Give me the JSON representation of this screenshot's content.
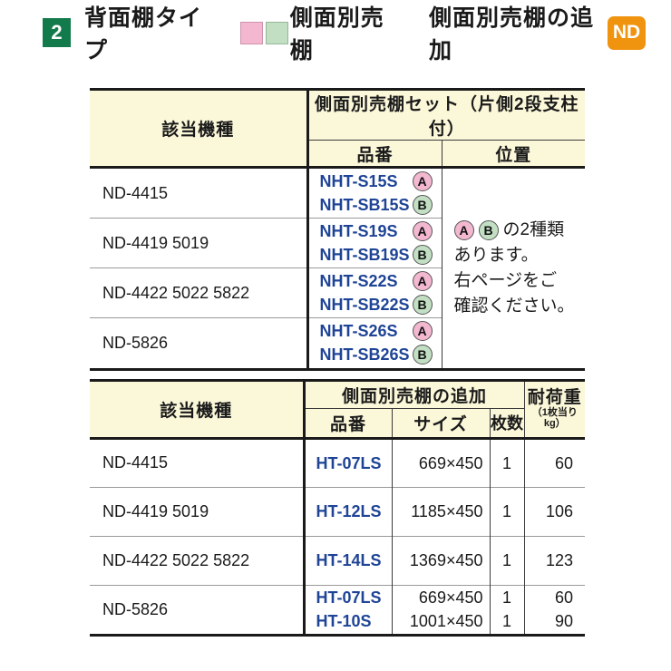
{
  "header": {
    "section_number": "2",
    "title": "背面棚タイプ",
    "legend_label": "側面別売棚",
    "addition_label": "側面別売棚の追加",
    "brand_badge": "ND"
  },
  "colors": {
    "section_green": "#127a4b",
    "brand_orange": "#f0930f",
    "table_header_yellow": "#fbf7d9",
    "part_number_blue": "#1f4496",
    "badge_pink": "#f3b7d0",
    "badge_green": "#c2dfc4"
  },
  "table1": {
    "header_model": "該当機種",
    "header_set": "側面別売棚セット（片側2段支柱付）",
    "header_part": "品番",
    "header_position": "位置",
    "rows": [
      {
        "model": "ND-4415",
        "parts": [
          {
            "code": "NHT-S15S",
            "badge": "A"
          },
          {
            "code": "NHT-SB15S",
            "badge": "B"
          }
        ]
      },
      {
        "model": "ND-4419 5019",
        "parts": [
          {
            "code": "NHT-S19S",
            "badge": "A"
          },
          {
            "code": "NHT-SB19S",
            "badge": "B"
          }
        ]
      },
      {
        "model": "ND-4422 5022 5822",
        "parts": [
          {
            "code": "NHT-S22S",
            "badge": "A"
          },
          {
            "code": "NHT-SB22S",
            "badge": "B"
          }
        ]
      },
      {
        "model": "ND-5826",
        "parts": [
          {
            "code": "NHT-S26S",
            "badge": "A"
          },
          {
            "code": "NHT-SB26S",
            "badge": "B"
          }
        ]
      }
    ],
    "note": {
      "badge_a": "A",
      "badge_b": "B",
      "line1": "の2種類",
      "line2": "あります。",
      "line3": "右ページをご",
      "line4": "確認ください。"
    }
  },
  "table2": {
    "header_model": "該当機種",
    "header_group": "側面別売棚の追加",
    "header_part": "品番",
    "header_size": "サイズ",
    "header_qty": "枚数",
    "header_load": "耐荷重",
    "header_load_sub": "（1枚当りkg）",
    "rows": [
      {
        "model": "ND-4415",
        "items": [
          {
            "code": "HT-07LS",
            "size": "669×450",
            "qty": "1",
            "load": "60"
          }
        ]
      },
      {
        "model": "ND-4419 5019",
        "items": [
          {
            "code": "HT-12LS",
            "size": "1185×450",
            "qty": "1",
            "load": "106"
          }
        ]
      },
      {
        "model": "ND-4422 5022 5822",
        "items": [
          {
            "code": "HT-14LS",
            "size": "1369×450",
            "qty": "1",
            "load": "123"
          }
        ]
      },
      {
        "model": "ND-5826",
        "items": [
          {
            "code": "HT-07LS",
            "size": "669×450",
            "qty": "1",
            "load": "60"
          },
          {
            "code": "HT-10S",
            "size": "1001×450",
            "qty": "1",
            "load": "90"
          }
        ]
      }
    ]
  }
}
